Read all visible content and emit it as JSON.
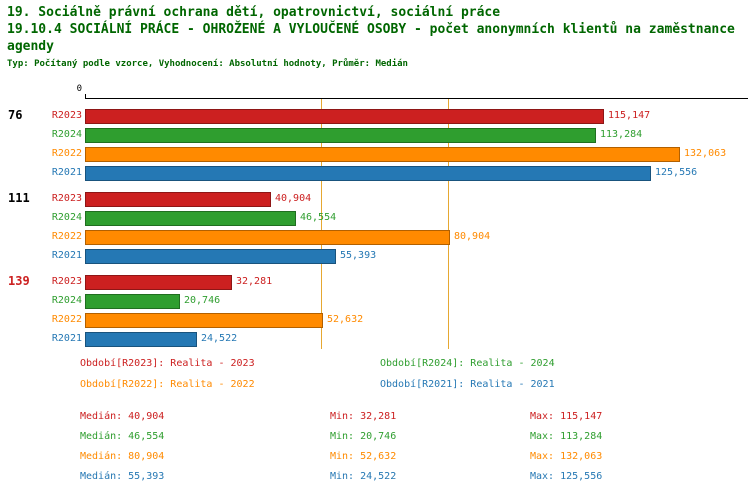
{
  "header": {
    "line1": "19. Sociálně právní ochrana dětí, opatrovnictví, sociální práce",
    "line2": "19.10.4 SOCIÁLNÍ PRÁCE - OHROŽENÉ A VYLOUČENÉ OSOBY - počet anonymních klientů na zaměstnance agendy",
    "subtitle": "Typ: Počítaný podle vzorce, Vyhodnocení: Absolutní hodnoty, Průměr: Medián",
    "title_color": "#006600"
  },
  "chart_data": {
    "type": "bar",
    "orientation": "horizontal",
    "title": "19.10.4 SOCIÁLNÍ PRÁCE - OHROŽENÉ A VYLOUČENÉ OSOBY - počet anonymních klientů na zaměstnance agendy",
    "axis": {
      "origin_label": "0",
      "xlim": [
        0,
        147000
      ],
      "grid": false
    },
    "series_order": [
      "R2023",
      "R2024",
      "R2022",
      "R2021"
    ],
    "series_colors": {
      "R2023": "#cc2020",
      "R2024": "#2f9e2f",
      "R2022": "#ff8a00",
      "R2021": "#2578b4"
    },
    "reference_lines": [
      {
        "value": 52632,
        "color": "#e6a832"
      },
      {
        "value": 80904,
        "color": "#e6a832"
      }
    ],
    "groups": [
      {
        "label": "76",
        "label_color": "#000000",
        "bars": [
          {
            "series": "R2023",
            "value": 115147,
            "display": "115,147"
          },
          {
            "series": "R2024",
            "value": 113284,
            "display": "113,284"
          },
          {
            "series": "R2022",
            "value": 132063,
            "display": "132,063"
          },
          {
            "series": "R2021",
            "value": 125556,
            "display": "125,556"
          }
        ]
      },
      {
        "label": "111",
        "label_color": "#000000",
        "bars": [
          {
            "series": "R2023",
            "value": 40904,
            "display": "40,904"
          },
          {
            "series": "R2024",
            "value": 46554,
            "display": "46,554"
          },
          {
            "series": "R2022",
            "value": 80904,
            "display": "80,904"
          },
          {
            "series": "R2021",
            "value": 55393,
            "display": "55,393"
          }
        ]
      },
      {
        "label": "139",
        "label_color": "#cc2020",
        "bars": [
          {
            "series": "R2023",
            "value": 32281,
            "display": "32,281"
          },
          {
            "series": "R2024",
            "value": 20746,
            "display": "20,746"
          },
          {
            "series": "R2022",
            "value": 52632,
            "display": "52,632"
          },
          {
            "series": "R2021",
            "value": 24522,
            "display": "24,522"
          }
        ]
      }
    ],
    "legend": [
      [
        {
          "key": "R2023",
          "text": "Období[R2023]: Realita - 2023"
        },
        {
          "key": "R2024",
          "text": "Období[R2024]: Realita - 2024"
        }
      ],
      [
        {
          "key": "R2022",
          "text": "Období[R2022]: Realita - 2022"
        },
        {
          "key": "R2021",
          "text": "Období[R2021]: Realita - 2021"
        }
      ]
    ],
    "stats": [
      {
        "key": "R2023",
        "median": "Medián: 40,904",
        "min": "Min: 32,281",
        "max": "Max: 115,147"
      },
      {
        "key": "R2024",
        "median": "Medián: 46,554",
        "min": "Min: 20,746",
        "max": "Max: 113,284"
      },
      {
        "key": "R2022",
        "median": "Medián: 80,904",
        "min": "Min: 52,632",
        "max": "Max: 132,063"
      },
      {
        "key": "R2021",
        "median": "Medián: 55,393",
        "min": "Min: 24,522",
        "max": "Max: 125,556"
      }
    ]
  }
}
